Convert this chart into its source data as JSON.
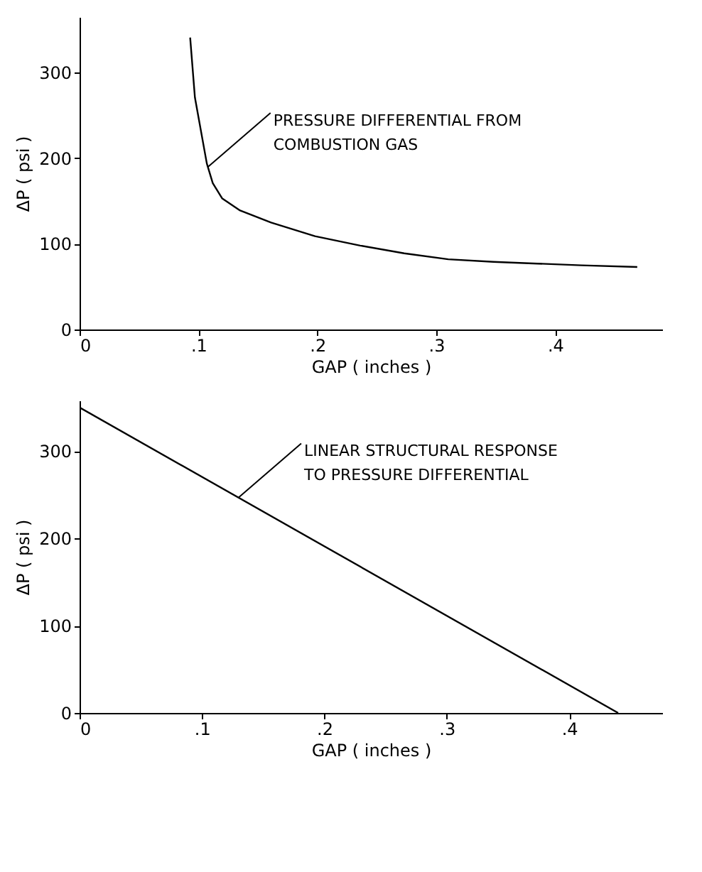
{
  "chart_data": [
    {
      "type": "line",
      "xlabel": "GAP ( inches )",
      "ylabel": "ΔP ( psi )",
      "x": [
        0.093,
        0.097,
        0.107,
        0.112,
        0.12,
        0.135,
        0.161,
        0.198,
        0.236,
        0.273,
        0.31,
        0.348,
        0.385,
        0.422,
        0.469
      ],
      "values": [
        341,
        271,
        194,
        171,
        153,
        139,
        125,
        109,
        98,
        89,
        82,
        79,
        77,
        75,
        73
      ],
      "color": "#000000",
      "xlim": [
        0,
        0.49
      ],
      "ylim": [
        0,
        365
      ],
      "xticks": [
        0,
        {
          "value": 0.1,
          "label": ".1"
        },
        {
          "value": 0.2,
          "label": ".2"
        },
        {
          "value": 0.3,
          "label": ".3"
        },
        {
          "value": 0.4,
          "label": ".4"
        }
      ],
      "yticks": [
        0,
        100,
        200,
        300
      ],
      "grid": false,
      "annotations": [
        {
          "text": "PRESSURE DIFFERENTIAL FROM\nCOMBUSTION GAS",
          "x": 0.108,
          "y": 190
        }
      ]
    },
    {
      "type": "line",
      "xlabel": "GAP ( inches )",
      "ylabel": "ΔP ( psi )",
      "x": [
        0,
        0.44
      ],
      "values": [
        350,
        0
      ],
      "color": "#000000",
      "xlim": [
        0,
        0.476
      ],
      "ylim": [
        0,
        358
      ],
      "xticks": [
        0,
        {
          "value": 0.1,
          "label": ".1"
        },
        {
          "value": 0.2,
          "label": ".2"
        },
        {
          "value": 0.3,
          "label": ".3"
        },
        {
          "value": 0.4,
          "label": ".4"
        }
      ],
      "yticks": [
        0,
        100,
        200,
        300
      ],
      "grid": false,
      "annotations": [
        {
          "text": "LINEAR STRUCTURAL RESPONSE\nTO PRESSURE DIFFERENTIAL",
          "x": 0.13,
          "y": 247
        }
      ]
    }
  ]
}
